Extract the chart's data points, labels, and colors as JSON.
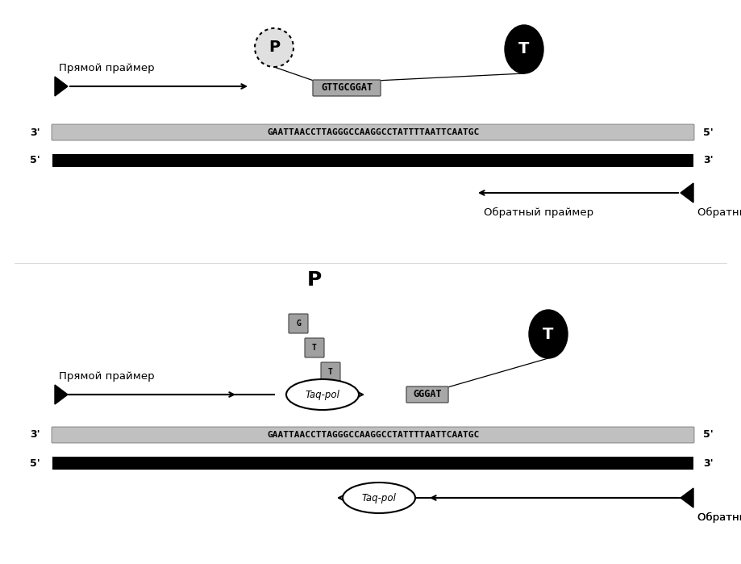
{
  "dna_sequence": "GAATTAACCTTAGGGCCAAGGCCTATTTTAATTCAATGC",
  "probe_seq_top": "GTTGCGGAT",
  "probe_seq_bottom": "GGGAT",
  "forward_primer_label": "Прямой праймер",
  "reverse_primer_label": "Обратный праймер",
  "taq_pol_label": "Taq-pol",
  "label_P": "P",
  "label_T": "T",
  "falling_letters": [
    "G",
    "T",
    "T"
  ],
  "strand_gray_color": "#c8c8c8",
  "strand_black_color": "#000000",
  "probe_box_color": "#a8a8a8",
  "circle_P_dotted": true,
  "circle_T_filled": true
}
